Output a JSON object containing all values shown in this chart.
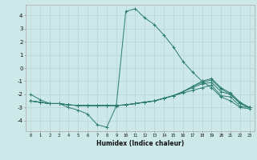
{
  "xlabel": "Humidex (Indice chaleur)",
  "x": [
    0,
    1,
    2,
    3,
    4,
    5,
    6,
    7,
    8,
    9,
    10,
    11,
    12,
    13,
    14,
    15,
    16,
    17,
    18,
    19,
    20,
    21,
    22,
    23
  ],
  "line1": [
    -2.0,
    -2.4,
    -2.7,
    -2.7,
    -3.0,
    -3.2,
    -3.5,
    -4.3,
    -4.5,
    -2.9,
    4.3,
    4.5,
    3.8,
    3.3,
    2.5,
    1.6,
    0.5,
    -0.3,
    -1.0,
    -1.5,
    -2.2,
    -2.5,
    -3.0,
    -3.1
  ],
  "line2": [
    -2.5,
    -2.6,
    -2.7,
    -2.7,
    -2.8,
    -2.85,
    -2.85,
    -2.85,
    -2.85,
    -2.85,
    -2.8,
    -2.7,
    -2.6,
    -2.5,
    -2.3,
    -2.1,
    -1.9,
    -1.7,
    -1.5,
    -1.3,
    -2.1,
    -2.2,
    -2.9,
    -3.0
  ],
  "line3": [
    -2.5,
    -2.6,
    -2.7,
    -2.7,
    -2.8,
    -2.85,
    -2.85,
    -2.85,
    -2.85,
    -2.85,
    -2.8,
    -2.7,
    -2.6,
    -2.5,
    -2.3,
    -2.1,
    -1.8,
    -1.5,
    -1.2,
    -1.1,
    -1.8,
    -2.0,
    -2.7,
    -3.0
  ],
  "line4": [
    -2.5,
    -2.6,
    -2.7,
    -2.7,
    -2.8,
    -2.85,
    -2.85,
    -2.85,
    -2.85,
    -2.85,
    -2.8,
    -2.7,
    -2.6,
    -2.5,
    -2.3,
    -2.1,
    -1.8,
    -1.4,
    -1.1,
    -0.9,
    -1.6,
    -2.0,
    -2.7,
    -3.0
  ],
  "line5": [
    -2.5,
    -2.6,
    -2.7,
    -2.7,
    -2.8,
    -2.85,
    -2.85,
    -2.85,
    -2.85,
    -2.85,
    -2.8,
    -2.7,
    -2.6,
    -2.5,
    -2.3,
    -2.1,
    -1.8,
    -1.4,
    -1.0,
    -0.8,
    -1.5,
    -1.9,
    -2.6,
    -3.0
  ],
  "color": "#2d7d6e",
  "bg_color": "#cce8e8",
  "grid_color": "#b8d4d4",
  "ylim": [
    -4.8,
    4.8
  ],
  "yticks": [
    -4,
    -3,
    -2,
    -1,
    0,
    1,
    2,
    3,
    4
  ],
  "xlim": [
    -0.5,
    23.5
  ]
}
